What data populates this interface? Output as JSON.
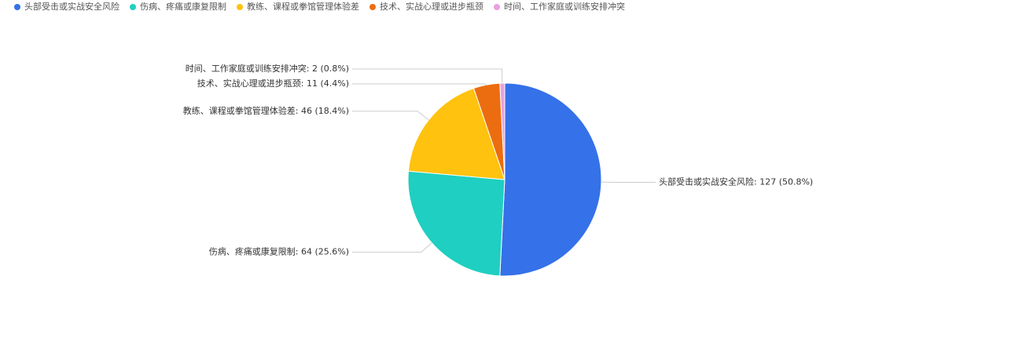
{
  "chart_data": {
    "type": "pie",
    "categories": [
      "头部受击或实战安全风险",
      "伤病、疼痛或康复限制",
      "教练、课程或拳馆管理体验差",
      "技术、实战心理或进步瓶颈",
      "时间、工作家庭或训练安排冲突"
    ],
    "values": [
      127,
      64,
      46,
      11,
      2
    ],
    "value_labels": [
      "头部受击或实战安全风险: 127 (50.8%)",
      "伤病、疼痛或康复限制: 64 (25.6%)",
      "教练、课程或拳馆管理体验差: 46 (18.4%)",
      "技术、实战心理或进步瓶颈: 11 (4.4%)",
      "时间、工作家庭或训练安排冲突: 2 (0.8%)"
    ],
    "colors": [
      "#3571e8",
      "#1fcfc1",
      "#ffc20e",
      "#ec6d0f",
      "#e8a0e0"
    ],
    "legend": "top-left"
  }
}
